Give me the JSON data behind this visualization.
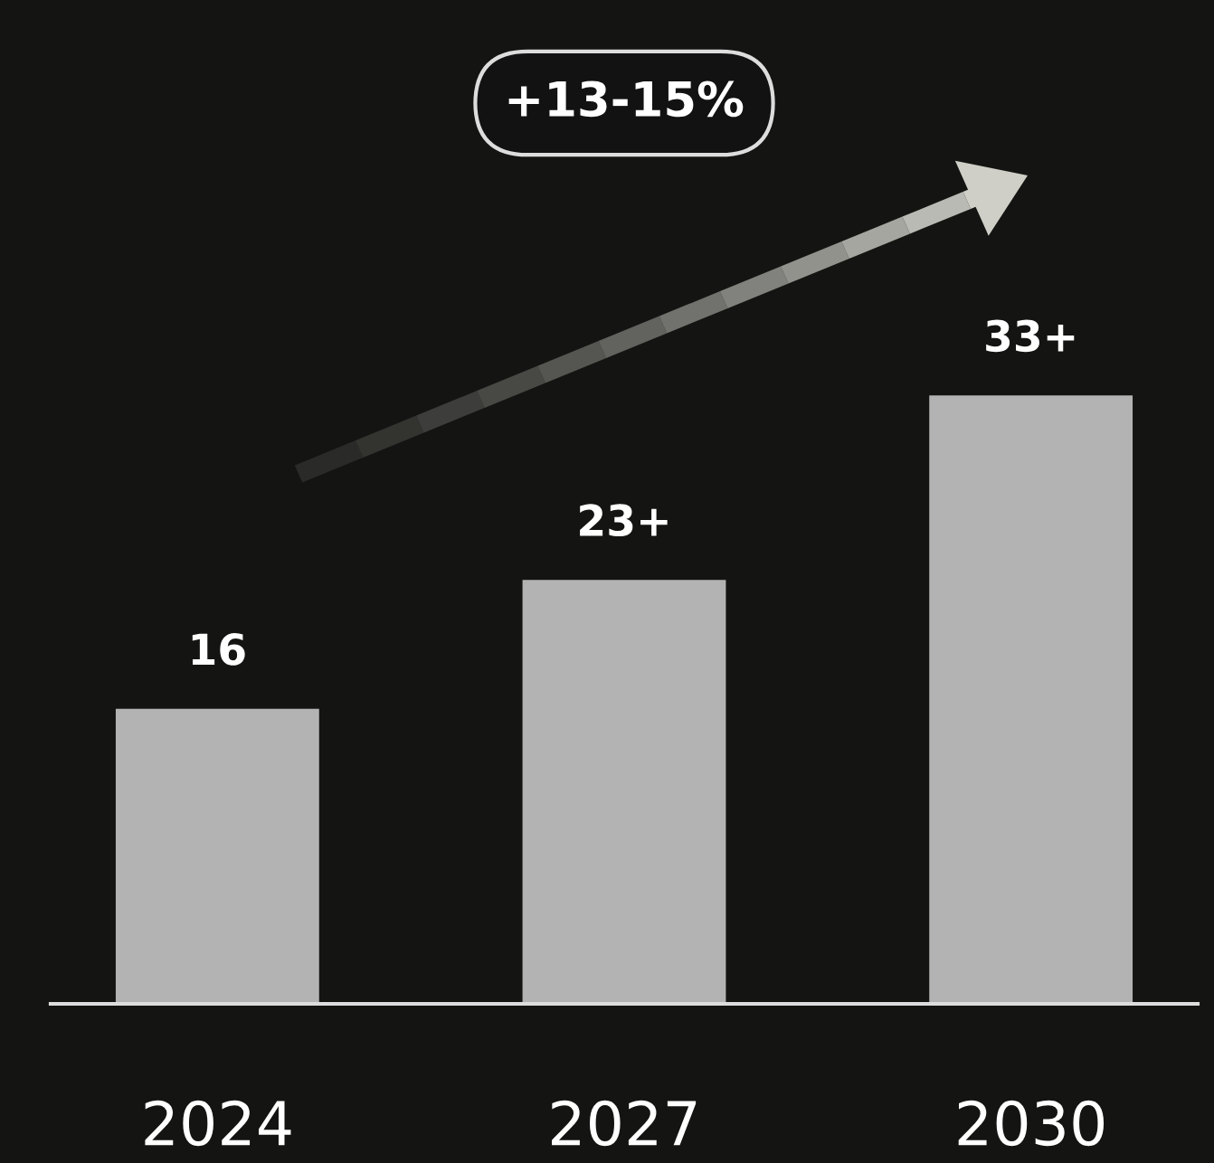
{
  "chart_data": {
    "type": "bar",
    "categories": [
      "2024",
      "2027",
      "2030"
    ],
    "values": [
      16,
      23,
      33
    ],
    "value_labels": [
      "16",
      "23+",
      "33+"
    ],
    "color": "#b3b3b3",
    "annotations": [
      "+13-15%"
    ],
    "grid": false,
    "legend": false
  }
}
